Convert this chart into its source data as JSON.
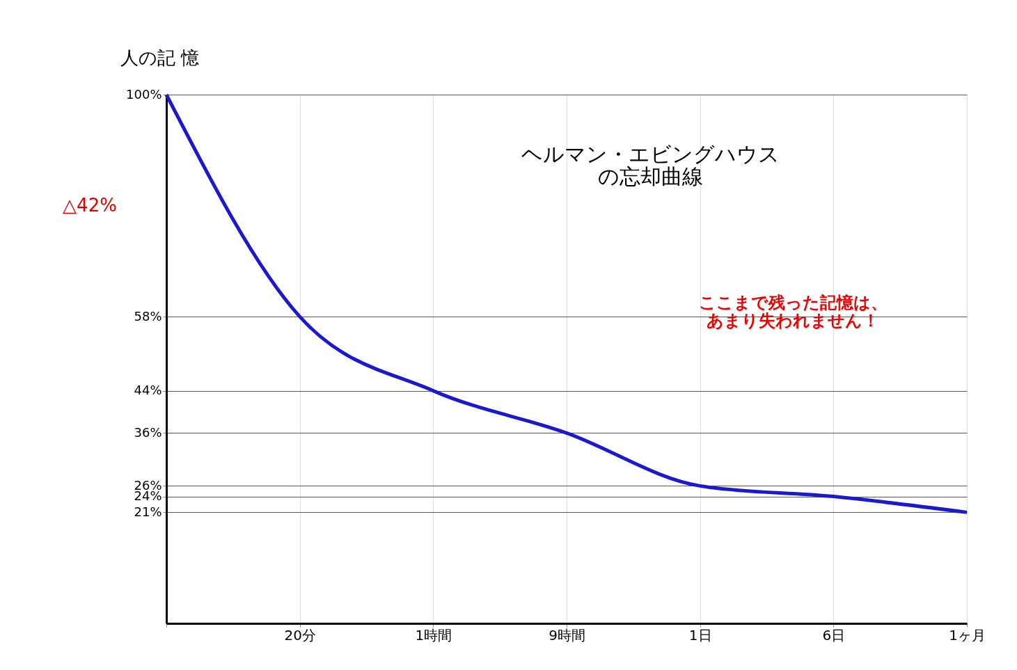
{
  "chart_data": {
    "type": "line",
    "title": "ヘルマン・エビングハウスの忘却曲線",
    "ylabel": "人の記 憶",
    "categories": [
      null,
      "20分",
      "1時間",
      "9時間",
      "1日",
      "6日",
      "1ヶ月"
    ],
    "series": [
      {
        "color": "#1a1acc",
        "values": [
          100,
          58,
          44,
          36,
          26,
          24,
          21
        ]
      }
    ],
    "ylim": [
      0,
      100
    ],
    "yticks": [
      {
        "value": 100,
        "label": "100%"
      },
      {
        "value": 58,
        "label": "58%"
      },
      {
        "value": 44,
        "label": "44%"
      },
      {
        "value": 36,
        "label": "36%"
      },
      {
        "value": 26,
        "label": "26%"
      },
      {
        "value": 24,
        "label": "24%"
      },
      {
        "value": 21,
        "label": "21%"
      }
    ],
    "annotations": [
      "△42%",
      "ここまで残った記憶は、あまり失われません！"
    ],
    "grid": true,
    "marker": "none"
  }
}
